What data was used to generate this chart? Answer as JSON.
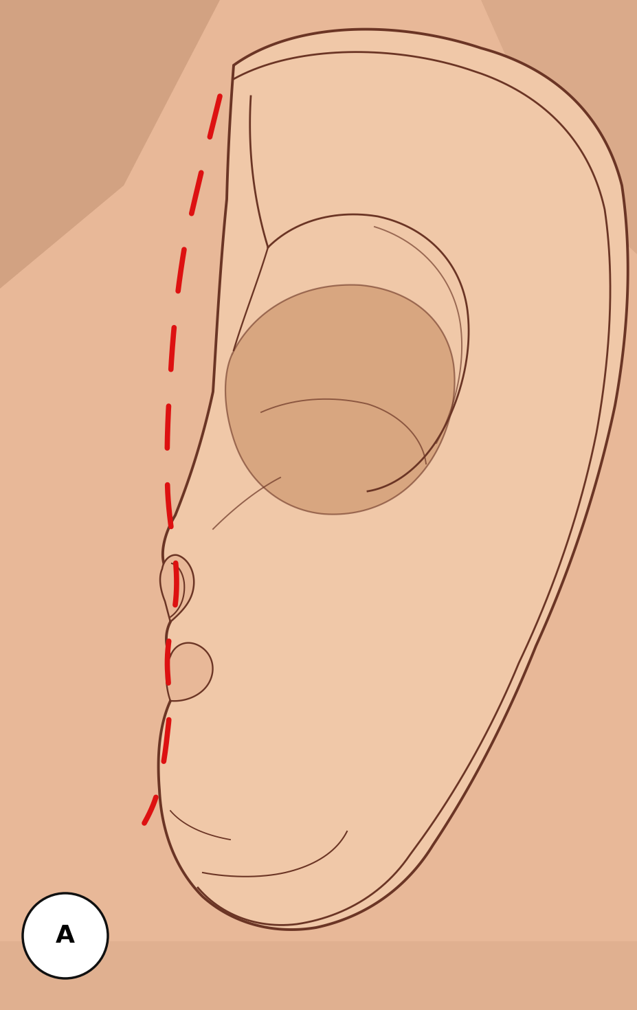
{
  "figsize": [
    9.27,
    14.7
  ],
  "dpi": 100,
  "bg_skin_light": "#e8b898",
  "bg_skin_shadow_tl": "#c8906a",
  "bg_skin_shadow_tr": "#c8956f",
  "ear_fill_light": "#f0c8a8",
  "ear_fill_mid": "#e8b88e",
  "ear_outline_color": "#6b3525",
  "ear_lw": 2.8,
  "ear_detail_lw": 2.0,
  "ear_inner_shadow": "#c89070",
  "red_dashed_color": "#dd1111",
  "red_lw": 5.5,
  "label_text": "A",
  "label_bg": "#ffffff",
  "label_border": "#111111",
  "label_fontsize": 26
}
